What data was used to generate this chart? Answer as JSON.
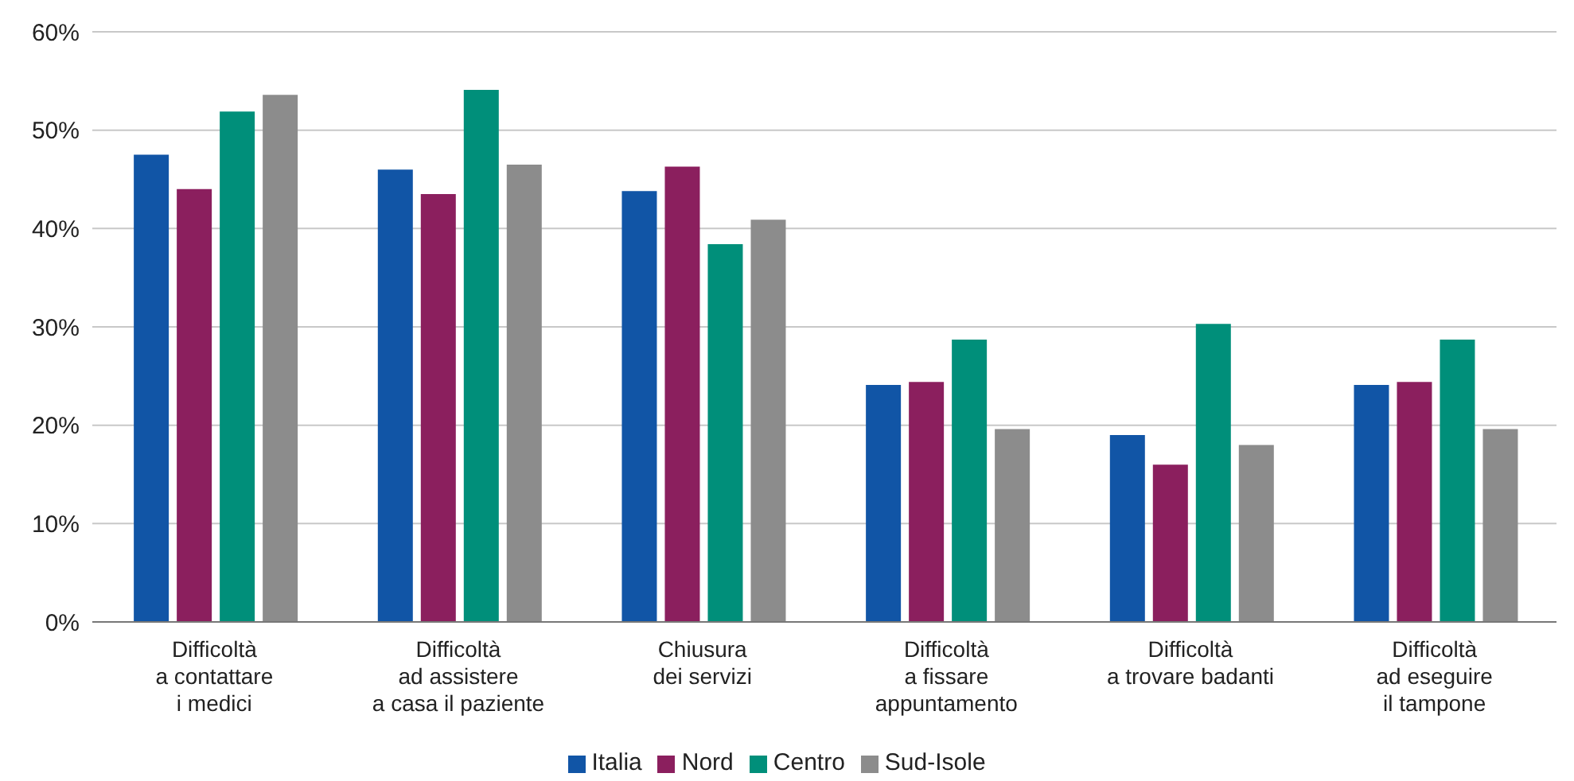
{
  "chart_data": {
    "type": "bar",
    "categories": [
      "Difficoltà\na contattare\ni medici",
      "Difficoltà\nad assistere\na casa il paziente",
      "Chiusura\ndei servizi",
      "Difficoltà\na fissare\nappuntamento",
      "Difficoltà\na trovare badanti",
      "Difficoltà\nad eseguire\nil tampone"
    ],
    "series": [
      {
        "name": "Italia",
        "color": "#1155a6",
        "values": [
          47.5,
          46.0,
          43.8,
          24.1,
          19.0,
          24.1
        ]
      },
      {
        "name": "Nord",
        "color": "#8b1f5e",
        "values": [
          44.0,
          43.5,
          46.3,
          24.4,
          16.0,
          24.4
        ]
      },
      {
        "name": "Centro",
        "color": "#008f7a",
        "values": [
          51.9,
          54.1,
          38.4,
          28.7,
          30.3,
          28.7
        ]
      },
      {
        "name": "Sud-Isole",
        "color": "#8c8c8c",
        "values": [
          53.6,
          46.5,
          40.9,
          19.6,
          18.0,
          19.6
        ]
      }
    ],
    "ylim": [
      0,
      60
    ],
    "yticks": [
      {
        "value": 0,
        "label": "0%"
      },
      {
        "value": 10,
        "label": "10%"
      },
      {
        "value": 20,
        "label": "20%"
      },
      {
        "value": 30,
        "label": "30%"
      },
      {
        "value": 40,
        "label": "40%"
      },
      {
        "value": 50,
        "label": "50%"
      },
      {
        "value": 60,
        "label": "60%"
      }
    ],
    "grid": "y",
    "legend": "bottom"
  }
}
